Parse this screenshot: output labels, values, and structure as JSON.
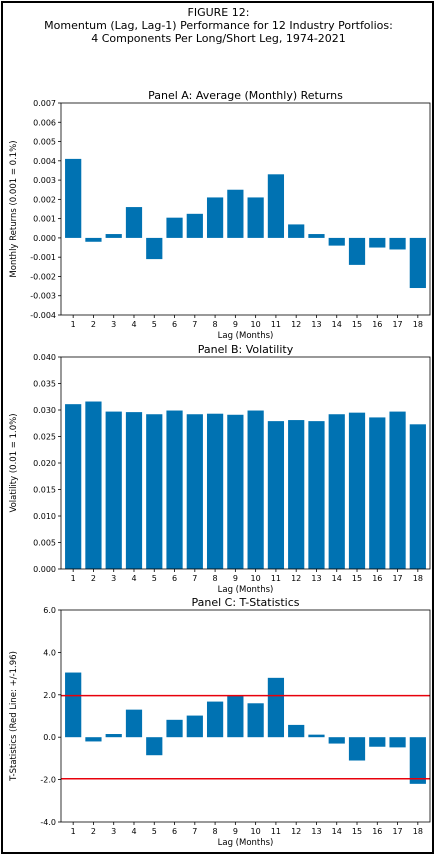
{
  "figure": {
    "title_line1": "FIGURE 12:",
    "title_line2": "Momentum (Lag, Lag-1) Performance for 12 Industry Portfolios:",
    "title_line3": "4 Components Per Long/Short Leg, 1974-2021"
  },
  "colors": {
    "bar": "#0072b2",
    "threshold": "#e8000b",
    "axis": "#000000"
  },
  "chart_data": [
    {
      "type": "bar",
      "title": "Panel A: Average (Monthly) Returns",
      "xlabel": "Lag (Months)",
      "ylabel": "Monthly Returns (0.001 = 0.1%)",
      "categories": [
        "1",
        "2",
        "3",
        "4",
        "5",
        "6",
        "7",
        "8",
        "9",
        "10",
        "11",
        "12",
        "13",
        "14",
        "15",
        "16",
        "17",
        "18"
      ],
      "values": [
        0.0041,
        -0.0002,
        0.0002,
        0.0016,
        -0.0011,
        0.00105,
        0.00125,
        0.0021,
        0.0025,
        0.0021,
        0.0033,
        0.0007,
        0.0002,
        -0.0004,
        -0.0014,
        -0.0005,
        -0.0006,
        -0.0026
      ],
      "ylim": [
        -0.004,
        0.007
      ],
      "yticks": [
        "-0.004",
        "-0.003",
        "-0.002",
        "-0.001",
        "0.000",
        "0.001",
        "0.002",
        "0.003",
        "0.004",
        "0.005",
        "0.006",
        "0.007"
      ],
      "grid": false
    },
    {
      "type": "bar",
      "title": "Panel B: Volatility",
      "xlabel": "Lag (Months)",
      "ylabel": "Volatility (0.01 = 1.0%)",
      "categories": [
        "1",
        "2",
        "3",
        "4",
        "5",
        "6",
        "7",
        "8",
        "9",
        "10",
        "11",
        "12",
        "13",
        "14",
        "15",
        "16",
        "17",
        "18"
      ],
      "values": [
        0.0311,
        0.0316,
        0.0297,
        0.0296,
        0.0292,
        0.0299,
        0.0292,
        0.0293,
        0.0291,
        0.0299,
        0.0279,
        0.0281,
        0.0279,
        0.0292,
        0.0295,
        0.0286,
        0.0297,
        0.0273
      ],
      "ylim": [
        0.0,
        0.04
      ],
      "yticks": [
        "0.000",
        "0.005",
        "0.010",
        "0.015",
        "0.020",
        "0.025",
        "0.030",
        "0.035",
        "0.040"
      ],
      "grid": false
    },
    {
      "type": "bar",
      "title": "Panel C: T-Statistics",
      "xlabel": "Lag (Months)",
      "ylabel": "T-Statistics (Red Line: +/-1.96)",
      "categories": [
        "1",
        "2",
        "3",
        "4",
        "5",
        "6",
        "7",
        "8",
        "9",
        "10",
        "11",
        "12",
        "13",
        "14",
        "15",
        "16",
        "17",
        "18"
      ],
      "values": [
        3.05,
        -0.2,
        0.15,
        1.3,
        -0.85,
        0.82,
        1.02,
        1.68,
        1.98,
        1.6,
        2.8,
        0.58,
        0.12,
        -0.3,
        -1.1,
        -0.45,
        -0.48,
        -2.2
      ],
      "ylim": [
        -4.0,
        6.0
      ],
      "yticks": [
        "-4.0",
        "-2.0",
        "0.0",
        "2.0",
        "4.0",
        "6.0"
      ],
      "hlines": [
        1.96,
        -1.96
      ],
      "grid": false
    }
  ]
}
